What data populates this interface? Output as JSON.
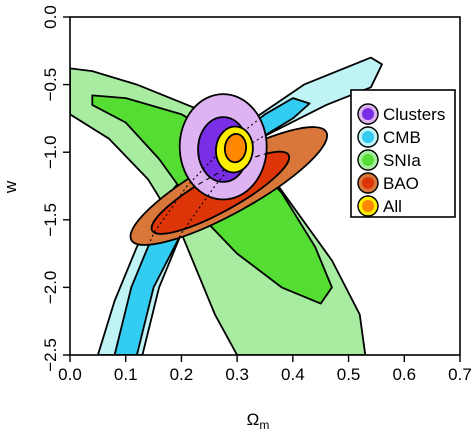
{
  "chart_data": {
    "type": "contour",
    "xlabel": "Ω",
    "xlabel_subscript": "m",
    "ylabel": "w",
    "xlim": [
      0.0,
      0.7
    ],
    "ylim": [
      -2.5,
      0.0
    ],
    "y_reversed": true,
    "x_ticks": [
      0.0,
      0.1,
      0.2,
      0.3,
      0.4,
      0.5,
      0.6,
      0.7
    ],
    "x_tick_labels": [
      "0.0",
      "0.1",
      "0.2",
      "0.3",
      "0.4",
      "0.5",
      "0.6",
      "0.7"
    ],
    "y_ticks": [
      0.0,
      -0.5,
      -1.0,
      -1.5,
      -2.0,
      -2.5
    ],
    "y_tick_labels": [
      "0.0",
      "−0.5",
      "−1.0",
      "−1.5",
      "−2.0",
      "−2.5"
    ],
    "grid": false,
    "legend_position": "right",
    "colors": {
      "clusters_outer": "#ddb3f2",
      "clusters_inner": "#7a2fe6",
      "cmb_outer": "#bff3f6",
      "cmb_inner": "#33ccf2",
      "snia_outer": "#a7eca0",
      "snia_inner": "#55dd33",
      "bao_outer": "#d9773a",
      "bao_inner": "#dd3508",
      "all_outer": "#ffee00",
      "all_inner": "#ff8800"
    },
    "series": [
      {
        "name": "Clusters",
        "outer_color": "#ddb3f2",
        "inner_color": "#7a2fe6"
      },
      {
        "name": "CMB",
        "outer_color": "#bff3f6",
        "inner_color": "#33ccf2"
      },
      {
        "name": "SNIa",
        "outer_color": "#a7eca0",
        "inner_color": "#55dd33"
      },
      {
        "name": "BAO",
        "outer_color": "#d9773a",
        "inner_color": "#dd3508"
      },
      {
        "name": "All",
        "outer_color": "#ffee00",
        "inner_color": "#ff8800"
      }
    ],
    "regions": {
      "snia_outer": [
        [
          0.0,
          -0.38
        ],
        [
          0.04,
          -0.4
        ],
        [
          0.12,
          -0.5
        ],
        [
          0.24,
          -0.7
        ],
        [
          0.33,
          -1.0
        ],
        [
          0.4,
          -1.4
        ],
        [
          0.47,
          -1.8
        ],
        [
          0.52,
          -2.2
        ],
        [
          0.53,
          -2.5
        ],
        [
          0.3,
          -2.5
        ],
        [
          0.26,
          -2.2
        ],
        [
          0.2,
          -1.6
        ],
        [
          0.14,
          -1.2
        ],
        [
          0.07,
          -0.9
        ],
        [
          0.0,
          -0.72
        ]
      ],
      "snia_inner": [
        [
          0.04,
          -0.58
        ],
        [
          0.1,
          -0.6
        ],
        [
          0.2,
          -0.72
        ],
        [
          0.3,
          -0.95
        ],
        [
          0.38,
          -1.3
        ],
        [
          0.44,
          -1.7
        ],
        [
          0.47,
          -2.0
        ],
        [
          0.45,
          -2.12
        ],
        [
          0.38,
          -2.0
        ],
        [
          0.3,
          -1.75
        ],
        [
          0.23,
          -1.45
        ],
        [
          0.16,
          -1.05
        ],
        [
          0.1,
          -0.78
        ],
        [
          0.04,
          -0.65
        ]
      ],
      "cmb_outer": [
        [
          0.54,
          -0.3
        ],
        [
          0.56,
          -0.35
        ],
        [
          0.54,
          -0.52
        ],
        [
          0.46,
          -0.65
        ],
        [
          0.34,
          -0.9
        ],
        [
          0.27,
          -1.2
        ],
        [
          0.2,
          -1.6
        ],
        [
          0.16,
          -2.0
        ],
        [
          0.13,
          -2.5
        ],
        [
          0.05,
          -2.5
        ],
        [
          0.08,
          -2.1
        ],
        [
          0.12,
          -1.7
        ],
        [
          0.18,
          -1.3
        ],
        [
          0.24,
          -1.0
        ],
        [
          0.32,
          -0.78
        ],
        [
          0.42,
          -0.5
        ]
      ],
      "cmb_inner": [
        [
          0.4,
          -0.6
        ],
        [
          0.43,
          -0.64
        ],
        [
          0.4,
          -0.75
        ],
        [
          0.32,
          -0.95
        ],
        [
          0.26,
          -1.25
        ],
        [
          0.2,
          -1.6
        ],
        [
          0.15,
          -2.0
        ],
        [
          0.12,
          -2.5
        ],
        [
          0.08,
          -2.5
        ],
        [
          0.11,
          -2.0
        ],
        [
          0.15,
          -1.6
        ],
        [
          0.21,
          -1.25
        ],
        [
          0.28,
          -0.95
        ],
        [
          0.35,
          -0.72
        ]
      ],
      "bao_outer_ellipse": {
        "cx": 0.285,
        "cy": -1.25,
        "rx": 0.2,
        "ry": 0.2,
        "angle": -29
      },
      "bao_inner_ellipse": {
        "cx": 0.27,
        "cy": -1.3,
        "rx": 0.14,
        "ry": 0.135,
        "angle": -29
      },
      "clusters_outer_ellipse": {
        "cx": 0.275,
        "cy": -0.96,
        "rx": 0.078,
        "ry": 0.39,
        "angle": 0
      },
      "clusters_inner_ellipse": {
        "cx": 0.275,
        "cy": -0.98,
        "rx": 0.045,
        "ry": 0.24,
        "angle": 0
      },
      "all_outer_ellipse": {
        "cx": 0.295,
        "cy": -0.98,
        "rx": 0.033,
        "ry": 0.17,
        "angle": 6
      },
      "all_inner_ellipse": {
        "cx": 0.297,
        "cy": -0.97,
        "rx": 0.019,
        "ry": 0.105,
        "angle": 6
      }
    }
  }
}
